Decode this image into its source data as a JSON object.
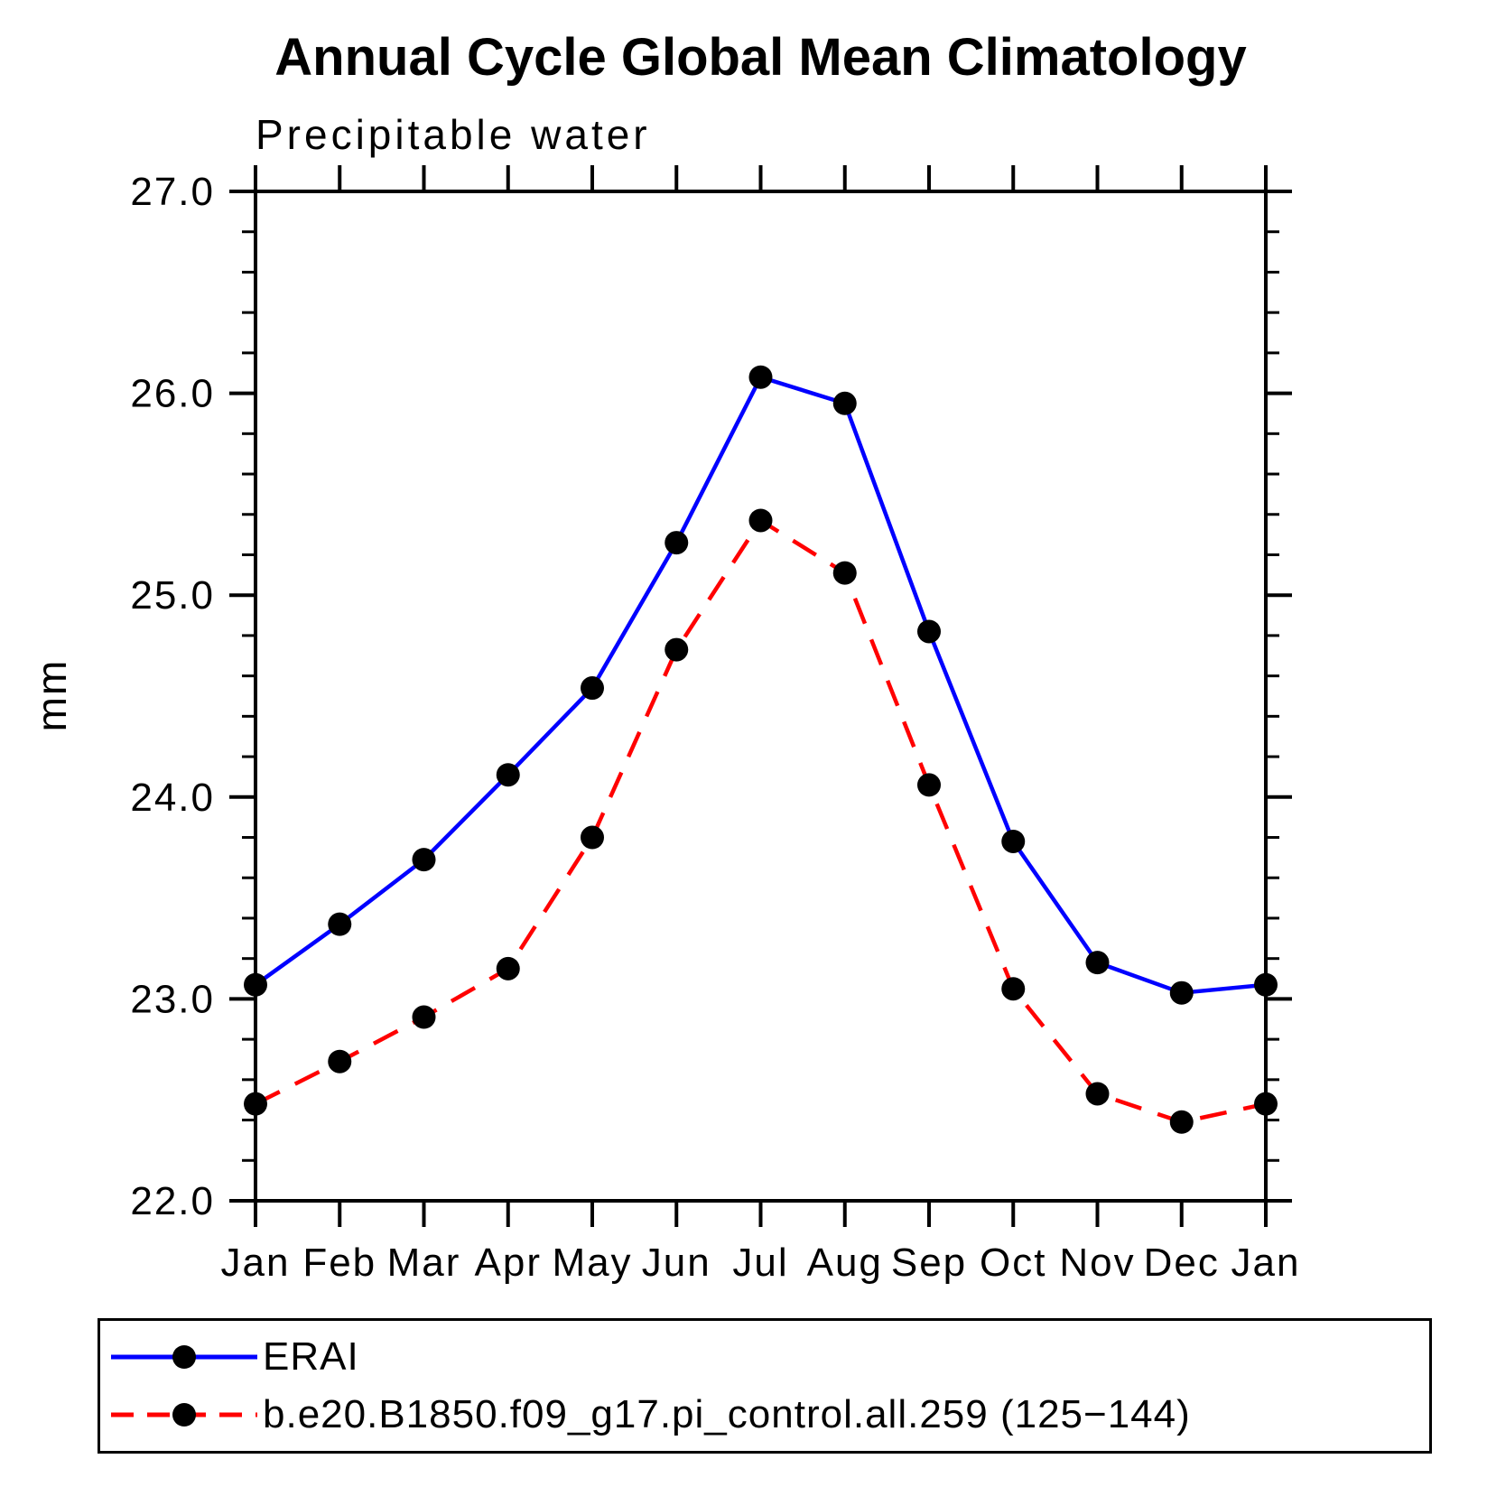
{
  "title": "Annual Cycle Global Mean Climatology",
  "subtitle": "Precipitable water",
  "y_axis": {
    "label": "mm",
    "min": 22.0,
    "max": 27.0,
    "major_step": 1.0,
    "minor_step": 0.2,
    "major_tick_labels": [
      "22.0",
      "23.0",
      "24.0",
      "25.0",
      "26.0",
      "27.0"
    ]
  },
  "x_axis": {
    "tick_labels": [
      "Jan",
      "Feb",
      "Mar",
      "Apr",
      "May",
      "Jun",
      "Jul",
      "Aug",
      "Sep",
      "Oct",
      "Nov",
      "Dec",
      "Jan"
    ]
  },
  "legend": {
    "items": [
      {
        "label": "ERAI",
        "color": "#0000ff",
        "line_style": "solid",
        "marker_color": "#000000"
      },
      {
        "label": "b.e20.B1850.f09_g17.pi_control.all.259 (125−144)",
        "color": "#ff0000",
        "line_style": "dashed",
        "marker_color": "#000000"
      }
    ]
  },
  "chart_data": {
    "type": "line",
    "title": "Annual Cycle Global Mean Climatology",
    "subtitle": "Precipitable water",
    "ylabel": "mm",
    "ylim": [
      22.0,
      27.0
    ],
    "grid": false,
    "legend_position": "bottom",
    "categories": [
      "Jan",
      "Feb",
      "Mar",
      "Apr",
      "May",
      "Jun",
      "Jul",
      "Aug",
      "Sep",
      "Oct",
      "Nov",
      "Dec",
      "Jan"
    ],
    "series": [
      {
        "name": "ERAI",
        "color": "#0000ff",
        "line_style": "solid",
        "marker": "circle",
        "marker_color": "#000000",
        "values": [
          23.07,
          23.37,
          23.69,
          24.11,
          24.54,
          25.26,
          26.08,
          25.95,
          24.82,
          23.78,
          23.18,
          23.03,
          23.07
        ]
      },
      {
        "name": "b.e20.B1850.f09_g17.pi_control.all.259 (125−144)",
        "color": "#ff0000",
        "line_style": "dashed",
        "marker": "circle",
        "marker_color": "#000000",
        "values": [
          22.48,
          22.69,
          22.91,
          23.15,
          23.8,
          24.73,
          25.37,
          25.11,
          24.06,
          23.05,
          22.53,
          22.39,
          22.48
        ]
      }
    ]
  }
}
